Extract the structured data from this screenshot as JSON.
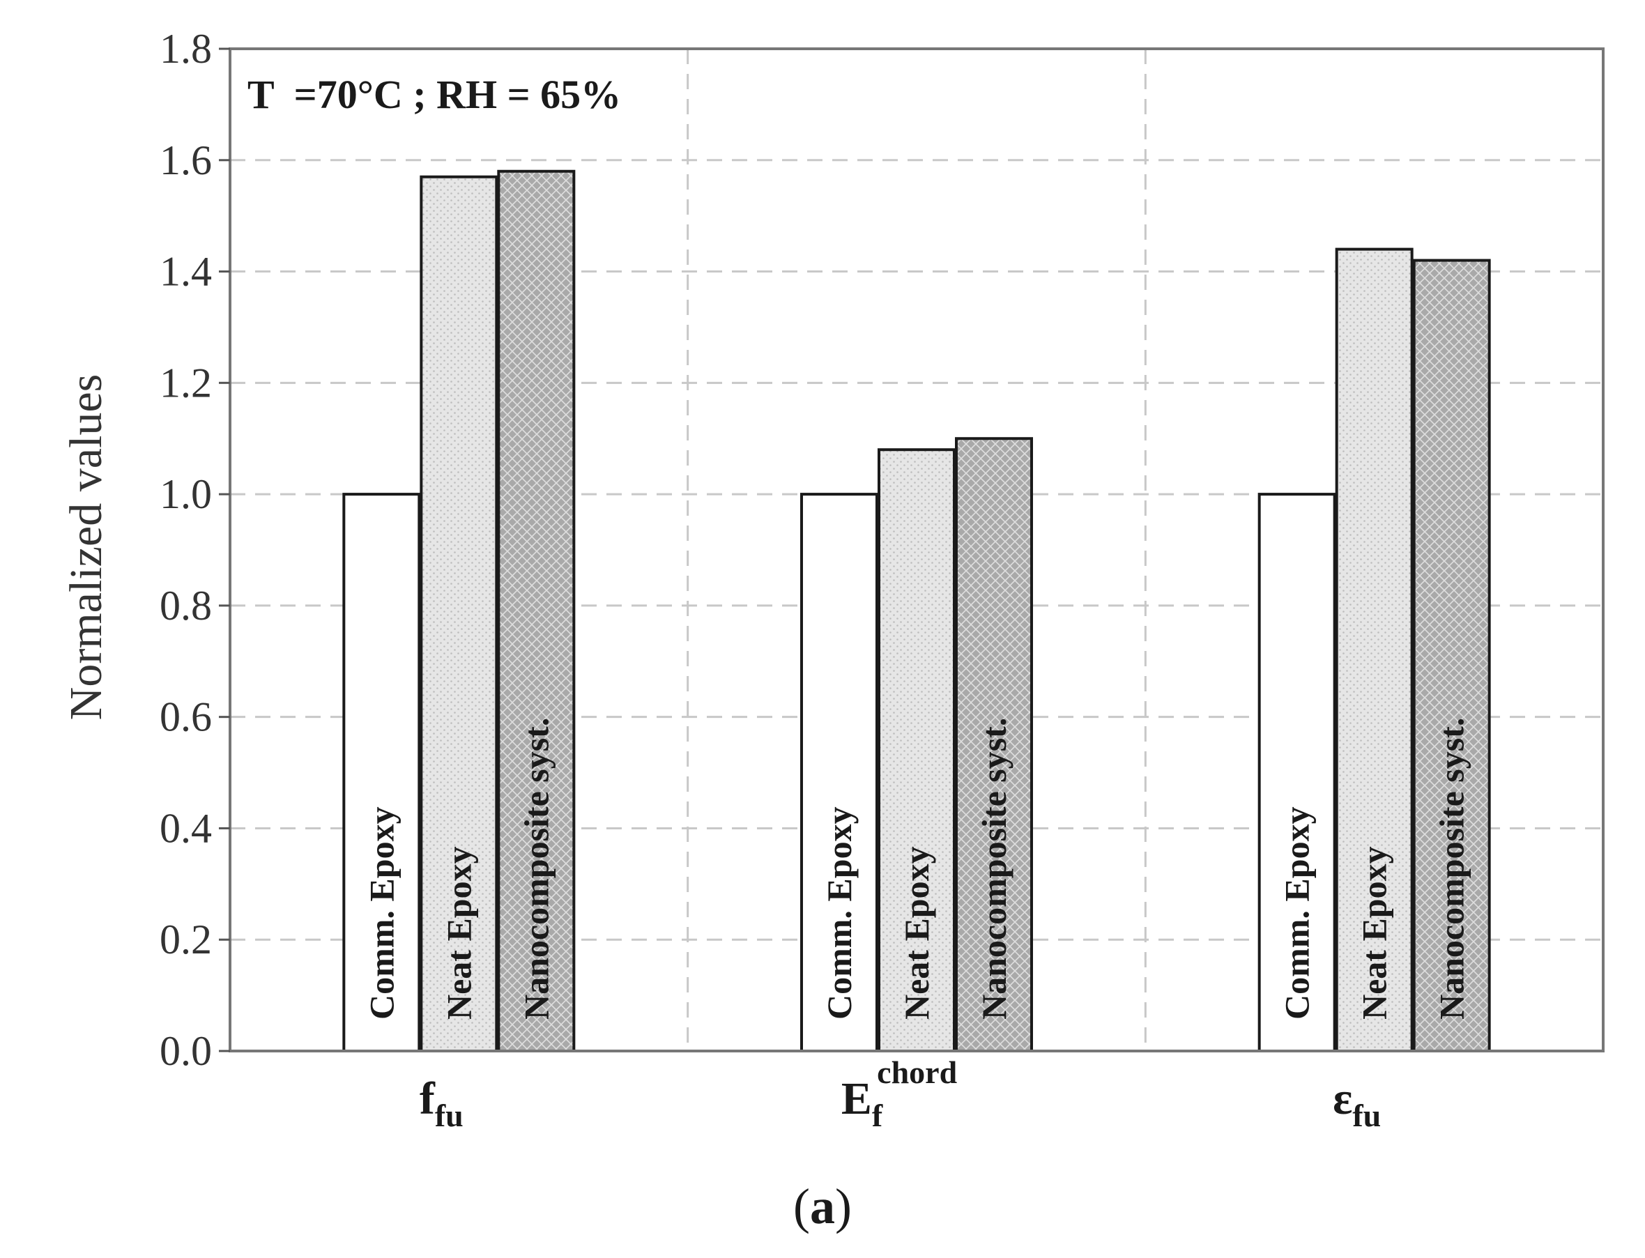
{
  "chart_data": {
    "type": "bar",
    "ylabel": "Normalized values",
    "ylim": [
      0,
      1.8
    ],
    "yticks": [
      "0.0",
      "0.2",
      "0.4",
      "0.6",
      "0.8",
      "1.0",
      "1.2",
      "1.4",
      "1.6",
      "1.8"
    ],
    "grid": true,
    "annotation": "T  =70°C ; RH = 65%",
    "categories": [
      {
        "main": "f",
        "sub": "fu",
        "sup": ""
      },
      {
        "main": "E",
        "sub": "f",
        "sup": "chord"
      },
      {
        "main": "ε",
        "sub": "fu",
        "sup": ""
      }
    ],
    "series": [
      {
        "name": "Comm. Epoxy",
        "values": [
          1.0,
          1.0,
          1.0
        ],
        "fill": "#ffffff"
      },
      {
        "name": "Neat Epoxy",
        "values": [
          1.57,
          1.08,
          1.44
        ],
        "fill": "#e4e4e4"
      },
      {
        "name": "Nanocomposite syst.",
        "values": [
          1.58,
          1.1,
          1.42
        ],
        "fill": "#b4b4b4"
      }
    ]
  },
  "caption": {
    "open": "(",
    "letter": "a",
    "close": ")"
  }
}
